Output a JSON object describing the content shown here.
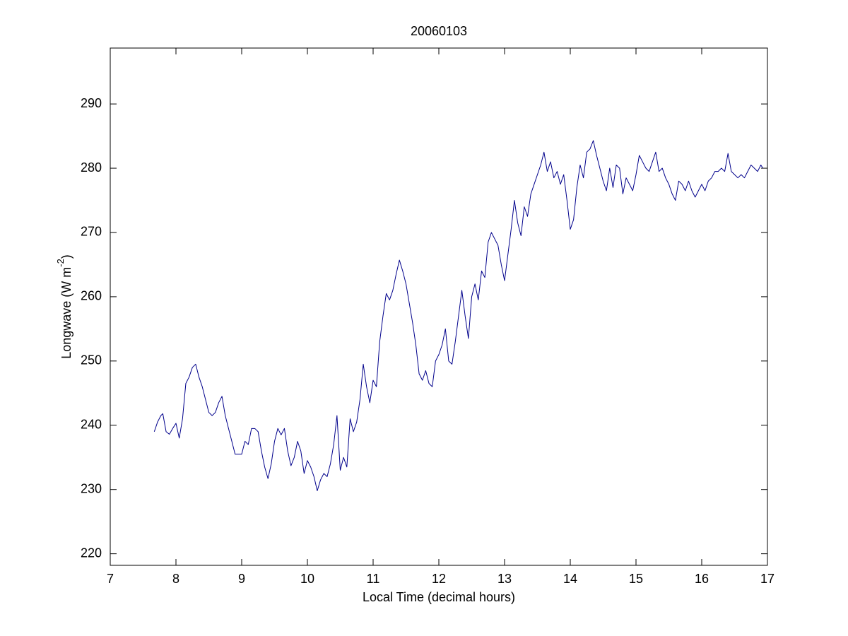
{
  "chart_data": {
    "type": "line",
    "title": "20060103",
    "xlabel": "Local Time (decimal hours)",
    "ylabel_parts": [
      "Longwave (W m",
      "-2",
      ")"
    ],
    "xlim": [
      7,
      17
    ],
    "xticks": [
      7,
      8,
      9,
      10,
      11,
      12,
      13,
      14,
      15,
      16,
      17
    ],
    "ylim": [
      218.2,
      298.7
    ],
    "yticks": [
      220,
      230,
      240,
      250,
      260,
      270,
      280,
      290
    ],
    "grid": false,
    "series": [
      {
        "color": "#00008b",
        "x": [
          7.67,
          7.72,
          7.77,
          7.8,
          7.85,
          7.9,
          7.95,
          8.0,
          8.05,
          8.1,
          8.15,
          8.2,
          8.25,
          8.3,
          8.35,
          8.4,
          8.45,
          8.5,
          8.55,
          8.6,
          8.65,
          8.7,
          8.75,
          8.8,
          8.85,
          8.9,
          8.95,
          9.0,
          9.05,
          9.1,
          9.15,
          9.2,
          9.25,
          9.3,
          9.35,
          9.4,
          9.45,
          9.5,
          9.55,
          9.6,
          9.65,
          9.7,
          9.75,
          9.8,
          9.85,
          9.9,
          9.95,
          10.0,
          10.05,
          10.1,
          10.15,
          10.2,
          10.25,
          10.3,
          10.35,
          10.4,
          10.45,
          10.5,
          10.55,
          10.6,
          10.65,
          10.7,
          10.75,
          10.8,
          10.85,
          10.9,
          10.95,
          11.0,
          11.05,
          11.1,
          11.15,
          11.2,
          11.25,
          11.3,
          11.35,
          11.4,
          11.45,
          11.5,
          11.55,
          11.6,
          11.65,
          11.7,
          11.75,
          11.8,
          11.85,
          11.9,
          11.95,
          12.0,
          12.05,
          12.1,
          12.15,
          12.2,
          12.25,
          12.3,
          12.35,
          12.4,
          12.45,
          12.5,
          12.55,
          12.6,
          12.65,
          12.7,
          12.75,
          12.8,
          12.85,
          12.9,
          12.95,
          13.0,
          13.05,
          13.1,
          13.15,
          13.2,
          13.25,
          13.3,
          13.35,
          13.4,
          13.45,
          13.5,
          13.55,
          13.6,
          13.65,
          13.7,
          13.75,
          13.8,
          13.85,
          13.9,
          13.95,
          14.0,
          14.05,
          14.1,
          14.15,
          14.2,
          14.25,
          14.3,
          14.35,
          14.4,
          14.45,
          14.5,
          14.55,
          14.6,
          14.65,
          14.7,
          14.75,
          14.8,
          14.85,
          14.9,
          14.95,
          15.0,
          15.05,
          15.1,
          15.15,
          15.2,
          15.25,
          15.3,
          15.35,
          15.4,
          15.45,
          15.5,
          15.55,
          15.6,
          15.65,
          15.7,
          15.75,
          15.8,
          15.85,
          15.9,
          15.95,
          16.0,
          16.05,
          16.1,
          16.15,
          16.2,
          16.25,
          16.3,
          16.35,
          16.4,
          16.45,
          16.5,
          16.55,
          16.6,
          16.65,
          16.7,
          16.75,
          16.8,
          16.85,
          16.9,
          16.93
        ],
        "values": [
          239,
          240.5,
          241.5,
          241.8,
          239,
          238.6,
          239.5,
          240.3,
          238,
          241,
          246.5,
          247.5,
          249,
          249.5,
          247.5,
          246,
          244,
          242,
          241.5,
          242,
          243.5,
          244.5,
          241.5,
          239.5,
          237.5,
          235.5,
          235.5,
          235.5,
          237.5,
          237,
          239.5,
          239.5,
          239,
          236,
          233.5,
          231.7,
          234,
          237.5,
          239.5,
          238.5,
          239.5,
          236,
          233.7,
          235,
          237.5,
          236,
          232.5,
          234.5,
          233.5,
          232,
          229.8,
          231.5,
          232.5,
          232,
          234,
          237,
          241.5,
          233,
          235,
          233.5,
          241,
          239,
          240.5,
          244,
          249.5,
          246,
          243.5,
          247,
          246,
          253,
          257,
          260.5,
          259.5,
          261,
          263.5,
          265.7,
          264,
          262,
          259,
          256,
          252.5,
          248,
          247,
          248.5,
          246.5,
          246,
          250,
          251,
          252.5,
          255,
          250,
          249.5,
          253,
          257,
          261,
          257,
          253.5,
          260,
          262,
          259.5,
          264,
          263,
          268.5,
          270,
          269,
          268,
          265,
          262.5,
          266.5,
          270.5,
          275,
          271.5,
          269.5,
          274,
          272.5,
          276,
          277.5,
          279,
          280.5,
          282.5,
          279.5,
          281,
          278.5,
          279.5,
          277.5,
          279,
          275,
          270.5,
          272,
          277,
          280.5,
          278.5,
          282.5,
          283,
          284.3,
          282,
          280,
          278,
          276.5,
          280,
          277,
          280.5,
          280,
          276,
          278.5,
          277.5,
          276.5,
          279,
          282,
          281,
          280,
          279.5,
          281,
          282.5,
          279.5,
          280,
          278.5,
          277.5,
          276,
          275,
          278,
          277.5,
          276.5,
          278,
          276.5,
          275.5,
          276.5,
          277.5,
          276.5,
          278,
          278.5,
          279.5,
          279.5,
          280,
          279.5,
          282.3,
          279.5,
          279,
          278.5,
          279,
          278.5,
          279.5,
          280.5,
          280,
          279.5,
          280.5,
          280
        ]
      }
    ]
  }
}
